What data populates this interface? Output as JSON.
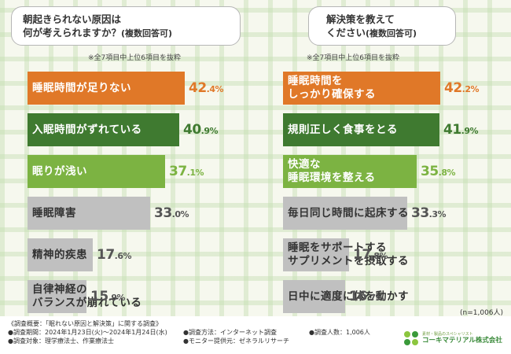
{
  "colors": {
    "orange": "#e07828",
    "dark_green": "#3f7a30",
    "light_green": "#7cb342",
    "gray": "#c0c0c0",
    "value_gray": "#555555"
  },
  "left": {
    "question_line1": "朝起きられない原因は",
    "question_line2": "何が考えられますか？",
    "question_suffix": "(複数回答可)",
    "note": "※全7項目中上位6項目を抜粋",
    "chart_data": {
      "type": "bar",
      "title": "朝起きられない原因は何が考えられますか？(複数回答可)",
      "unit": "%",
      "xlim": [
        0,
        42.4
      ],
      "items": [
        {
          "lines": [
            "睡眠時間が足りない"
          ],
          "int": "42",
          "dec": ".4%",
          "value": 42.4,
          "color": "orange",
          "style": "color"
        },
        {
          "lines": [
            "入眠時間がずれている"
          ],
          "int": "40",
          "dec": ".9%",
          "value": 40.9,
          "color": "dark_green",
          "style": "color"
        },
        {
          "lines": [
            "眠りが浅い"
          ],
          "int": "37",
          "dec": ".1%",
          "value": 37.1,
          "color": "light_green",
          "style": "color"
        },
        {
          "lines": [
            "睡眠障害"
          ],
          "int": "33",
          "dec": ".0%",
          "value": 33.0,
          "color": "gray",
          "style": "gray"
        },
        {
          "lines": [
            "精神的疾患"
          ],
          "int": "17",
          "dec": ".6%",
          "value": 17.6,
          "color": "gray",
          "style": "gray"
        },
        {
          "lines": [
            "自律神経の",
            "バランスが崩れている"
          ],
          "int": "15",
          "dec": ".9%",
          "value": 15.9,
          "color": "gray",
          "style": "gray"
        }
      ]
    }
  },
  "right": {
    "question_line1": "解決策を教えて",
    "question_line2": "ください",
    "question_suffix": "(複数回答可)",
    "note": "※全7項目中上位6項目を抜粋",
    "chart_data": {
      "type": "bar",
      "title": "解決策を教えてください(複数回答可)",
      "unit": "%",
      "xlim": [
        0,
        42.2
      ],
      "items": [
        {
          "lines": [
            "睡眠時間を",
            "しっかり確保する"
          ],
          "int": "42",
          "dec": ".2%",
          "value": 42.2,
          "color": "orange",
          "style": "color"
        },
        {
          "lines": [
            "規則正しく食事をとる"
          ],
          "int": "41",
          "dec": ".9%",
          "value": 41.9,
          "color": "dark_green",
          "style": "color"
        },
        {
          "lines": [
            "快適な",
            "睡眠環境を整える"
          ],
          "int": "35",
          "dec": ".8%",
          "value": 35.8,
          "color": "light_green",
          "style": "color"
        },
        {
          "lines": [
            "毎日同じ時間に起床する"
          ],
          "int": "33",
          "dec": ".3%",
          "value": 33.3,
          "color": "gray",
          "style": "gray"
        },
        {
          "lines": [
            "睡眠をサポートする",
            "サプリメントを摂取する"
          ],
          "int": "17",
          "dec": ".8%",
          "value": 17.8,
          "color": "gray",
          "style": "gray"
        },
        {
          "lines": [
            "日中に適度に体を動かす"
          ],
          "int": "16",
          "dec": ".7%",
          "value": 16.7,
          "color": "gray",
          "style": "gray"
        }
      ]
    }
  },
  "sample_note": "(n=1,006人)",
  "footer": {
    "overview": "《調査概要：「眠れない原因と解決策」に関する調査》",
    "period": "●調査期間：2024年1月23日(火)〜2024年1月24日(水)",
    "target": "●調査対象：理学療法士、作業療法士",
    "method": "●調査方法：インターネット調査",
    "provider": "●モニター提供元：ゼネラルリサーチ",
    "count": "●調査人数：1,006人",
    "logo_sub": "素材・製品のスペシャリスト",
    "logo_name": "コーキマテリアル株式会社"
  }
}
